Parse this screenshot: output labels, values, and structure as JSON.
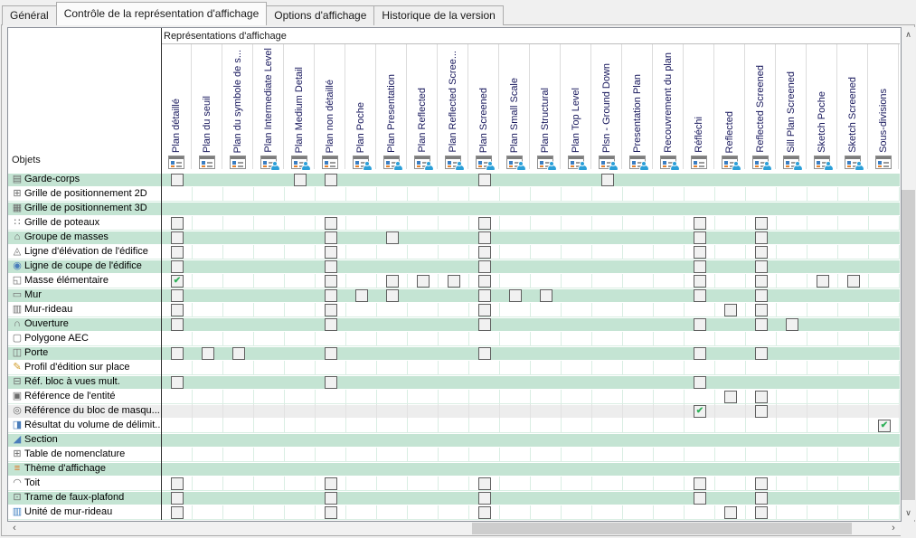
{
  "tabs": [
    {
      "label": "Général",
      "active": false
    },
    {
      "label": "Contrôle de la représentation d'affichage",
      "active": true
    },
    {
      "label": "Options d'affichage",
      "active": false
    },
    {
      "label": "Historique de la version",
      "active": false
    }
  ],
  "matrix": {
    "header_title": "Représentations d'affichage",
    "corner_label": "Objets",
    "check_glyph": "✔",
    "columns": [
      {
        "label": "Plan détaillé",
        "icon": "display-rep-icon"
      },
      {
        "label": "Plan du seuil",
        "icon": "display-rep-icon"
      },
      {
        "label": "Plan du symbole de s...",
        "icon": "display-rep-icon"
      },
      {
        "label": "Plan Intermediate Level",
        "icon": "display-rep-user-icon"
      },
      {
        "label": "Plan Medium Detail",
        "icon": "display-rep-user-icon"
      },
      {
        "label": "Plan non détaillé",
        "icon": "display-rep-icon"
      },
      {
        "label": "Plan Poche",
        "icon": "display-rep-user-icon"
      },
      {
        "label": "Plan Presentation",
        "icon": "display-rep-user-icon"
      },
      {
        "label": "Plan Reflected",
        "icon": "display-rep-user-icon"
      },
      {
        "label": "Plan Reflected Scree...",
        "icon": "display-rep-user-icon"
      },
      {
        "label": "Plan Screened",
        "icon": "display-rep-user-icon"
      },
      {
        "label": "Plan Small Scale",
        "icon": "display-rep-user-icon"
      },
      {
        "label": "Plan Structural",
        "icon": "display-rep-user-icon"
      },
      {
        "label": "Plan Top Level",
        "icon": "display-rep-user-icon"
      },
      {
        "label": "Plsn - Ground Down",
        "icon": "display-rep-user-icon"
      },
      {
        "label": "Presentation Plan",
        "icon": "display-rep-user-icon"
      },
      {
        "label": "Recouvrement du plan",
        "icon": "display-rep-user-icon"
      },
      {
        "label": "Réfléchi",
        "icon": "display-rep-icon"
      },
      {
        "label": "Reflected",
        "icon": "display-rep-user-icon"
      },
      {
        "label": "Reflected Screened",
        "icon": "display-rep-user-icon"
      },
      {
        "label": "Sill Plan Screened",
        "icon": "display-rep-user-icon"
      },
      {
        "label": "Sketch Poche",
        "icon": "display-rep-user-icon"
      },
      {
        "label": "Sketch Screened",
        "icon": "display-rep-user-icon"
      },
      {
        "label": "Sous-divisions",
        "icon": "display-rep-icon"
      }
    ],
    "rows": [
      {
        "label": "Garde-corps",
        "icon": "railing-icon",
        "glyph": "▤",
        "bg": "green",
        "cells": {
          "1": false,
          "5": false,
          "6": false,
          "11": false,
          "15": false
        }
      },
      {
        "label": "Grille de positionnement 2D",
        "icon": "layout-grid-2d-icon",
        "glyph": "⊞",
        "bg": "white",
        "cells": {}
      },
      {
        "label": "Grille de positionnement 3D",
        "icon": "layout-grid-3d-icon",
        "glyph": "▦",
        "bg": "green",
        "cells": {}
      },
      {
        "label": "Grille de poteaux",
        "icon": "column-grid-icon",
        "glyph": "∷",
        "bg": "white",
        "cells": {
          "1": false,
          "6": false,
          "11": false,
          "18": false,
          "20": false
        }
      },
      {
        "label": "Groupe de masses",
        "icon": "mass-group-icon",
        "glyph": "⌂",
        "bg": "green",
        "cells": {
          "1": false,
          "6": false,
          "8": false,
          "11": false,
          "18": false,
          "20": false
        }
      },
      {
        "label": "Ligne d'élévation de l'édifice",
        "icon": "elevation-line-icon",
        "glyph": "◬",
        "bg": "white",
        "cells": {
          "1": false,
          "6": false,
          "11": false,
          "18": false,
          "20": false
        }
      },
      {
        "label": "Ligne de coupe de l'édifice",
        "icon": "building-section-line-icon",
        "glyph": "◉",
        "color": "#4a7dbb",
        "bg": "green",
        "cells": {
          "1": false,
          "6": false,
          "11": false,
          "18": false,
          "20": false
        }
      },
      {
        "label": "Masse élémentaire",
        "icon": "mass-element-icon",
        "glyph": "◱",
        "bg": "white",
        "cells": {
          "1": true,
          "6": false,
          "8": false,
          "9": false,
          "10": false,
          "11": false,
          "18": false,
          "20": false,
          "22": false,
          "23": false
        }
      },
      {
        "label": "Mur",
        "icon": "wall-icon",
        "glyph": "▭",
        "bg": "green",
        "cells": {
          "1": false,
          "6": false,
          "7": false,
          "8": false,
          "11": false,
          "12": false,
          "13": false,
          "18": false,
          "20": false
        }
      },
      {
        "label": "Mur-rideau",
        "icon": "curtain-wall-icon",
        "glyph": "▥",
        "bg": "white",
        "cells": {
          "1": false,
          "6": false,
          "11": false,
          "19": false,
          "20": false
        }
      },
      {
        "label": "Ouverture",
        "icon": "opening-icon",
        "glyph": "∩",
        "bg": "green",
        "cells": {
          "1": false,
          "6": false,
          "11": false,
          "18": false,
          "20": false,
          "21": false
        }
      },
      {
        "label": "Polygone AEC",
        "icon": "aec-polygon-icon",
        "glyph": "▢",
        "bg": "white",
        "cells": {}
      },
      {
        "label": "Porte",
        "icon": "door-icon",
        "glyph": "◫",
        "bg": "green",
        "cells": {
          "1": false,
          "2": false,
          "3": false,
          "6": false,
          "11": false,
          "18": false,
          "20": false
        }
      },
      {
        "label": "Profil d'édition sur place",
        "icon": "in-place-edit-profile-icon",
        "glyph": "✎",
        "color": "#d19b26",
        "bg": "white",
        "cells": {}
      },
      {
        "label": "Réf. bloc à vues mult.",
        "icon": "multiview-block-reference-icon",
        "glyph": "⊟",
        "bg": "green",
        "cells": {
          "1": false,
          "6": false,
          "18": false
        }
      },
      {
        "label": "Référence de l'entité",
        "icon": "entity-reference-icon",
        "glyph": "▣",
        "bg": "white",
        "cells": {
          "19": false,
          "20": false
        }
      },
      {
        "label": "Référence du bloc de masqu...",
        "icon": "mask-block-reference-icon",
        "glyph": "◎",
        "bg": "gray",
        "cells": {
          "18": true,
          "20": false
        }
      },
      {
        "label": "Résultat du volume de délimit...",
        "icon": "bounding-volume-result-icon",
        "glyph": "◨",
        "color": "#4a7dbb",
        "bg": "white",
        "cells": {
          "24": true
        }
      },
      {
        "label": "Section",
        "icon": "section-icon",
        "glyph": "◢",
        "color": "#4a7dbb",
        "bg": "green",
        "cells": {}
      },
      {
        "label": "Table de nomenclature",
        "icon": "schedule-table-icon",
        "glyph": "⊞",
        "bg": "white",
        "cells": {}
      },
      {
        "label": "Thème d'affichage",
        "icon": "display-theme-icon",
        "glyph": "≡",
        "color": "#e0731d",
        "bg": "green",
        "cells": {}
      },
      {
        "label": "Toit",
        "icon": "roof-icon",
        "glyph": "◠",
        "bg": "white",
        "cells": {
          "1": false,
          "6": false,
          "11": false,
          "18": false,
          "20": false
        }
      },
      {
        "label": "Trame de faux-plafond",
        "icon": "ceiling-grid-icon",
        "glyph": "⊡",
        "bg": "green",
        "cells": {
          "1": false,
          "6": false,
          "11": false,
          "18": false,
          "20": false
        }
      },
      {
        "label": "Unité de mur-rideau",
        "icon": "curtain-wall-unit-icon",
        "glyph": "▥",
        "color": "#3f7fc1",
        "bg": "white",
        "cells": {
          "1": false,
          "6": false,
          "11": false,
          "19": false,
          "20": false
        }
      }
    ]
  },
  "scrollbars": {
    "up": "∧",
    "down": "∨",
    "left": "‹",
    "right": "›"
  },
  "colors": {
    "row_green": "#c4e4d3",
    "row_gray": "#ededed",
    "grid_line": "#d9eee3",
    "check_green": "#2fb059",
    "header_text": "#17175c",
    "divider": "#2f2f2f"
  }
}
